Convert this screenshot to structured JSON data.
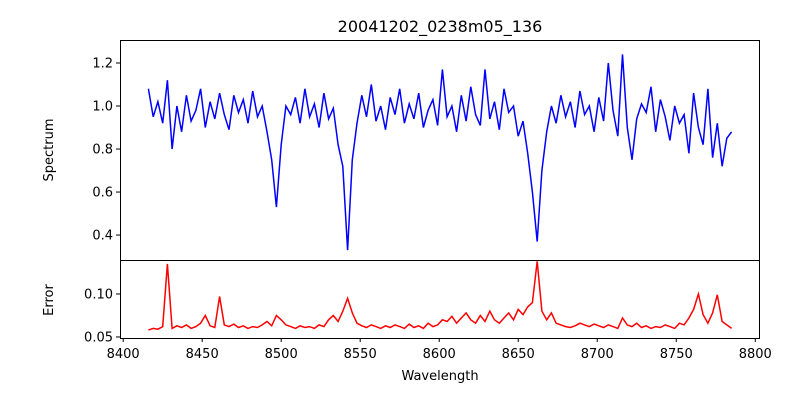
{
  "chart_data": [
    {
      "type": "line",
      "title": "20041202_0238m05_136",
      "xlabel": "",
      "ylabel": "Spectrum",
      "xlim": [
        8398,
        8803
      ],
      "ylim": [
        0.284,
        1.307
      ],
      "yticks": [
        0.4,
        0.6,
        0.8,
        1.0,
        1.2
      ],
      "ytick_labels": [
        "0.4",
        "0.6",
        "0.8",
        "1.0",
        "1.2"
      ],
      "x_start": 8416,
      "x_step": 3,
      "color": "#0000ff",
      "values": [
        1.08,
        0.95,
        1.02,
        0.92,
        1.12,
        0.8,
        1.0,
        0.88,
        1.05,
        0.93,
        0.98,
        1.08,
        0.9,
        1.02,
        0.94,
        1.06,
        0.96,
        0.89,
        1.05,
        0.97,
        1.03,
        0.92,
        1.07,
        0.95,
        1.0,
        0.88,
        0.75,
        0.53,
        0.82,
        1.0,
        0.96,
        1.04,
        0.92,
        1.08,
        0.95,
        1.01,
        0.9,
        1.06,
        0.94,
        0.99,
        0.82,
        0.72,
        0.33,
        0.75,
        0.92,
        1.05,
        0.95,
        1.1,
        0.93,
        1.0,
        0.89,
        1.04,
        0.96,
        1.08,
        0.92,
        1.01,
        0.94,
        1.06,
        0.9,
        0.98,
        1.03,
        0.91,
        1.17,
        0.95,
        1.0,
        0.88,
        1.05,
        0.93,
        1.09,
        0.96,
        0.91,
        1.17,
        0.94,
        1.02,
        0.89,
        1.08,
        0.97,
        1.0,
        0.86,
        0.93,
        0.78,
        0.6,
        0.37,
        0.7,
        0.88,
        1.0,
        0.92,
        1.05,
        0.95,
        1.02,
        0.9,
        1.07,
        0.96,
        1.0,
        0.88,
        1.04,
        0.93,
        1.2,
        0.98,
        0.86,
        1.24,
        0.9,
        0.75,
        0.94,
        1.01,
        0.97,
        1.09,
        0.88,
        1.03,
        0.95,
        0.84,
        1.0,
        0.92,
        0.96,
        0.78,
        1.06,
        0.9,
        0.82,
        1.08,
        0.76,
        0.92,
        0.72,
        0.85,
        0.88
      ]
    },
    {
      "type": "line",
      "title": "",
      "xlabel": "Wavelength",
      "ylabel": "Error",
      "xlim": [
        8398,
        8803
      ],
      "ylim": [
        0.0488,
        0.1395
      ],
      "yticks": [
        0.05,
        0.1
      ],
      "ytick_labels": [
        "0.05",
        "0.10"
      ],
      "xticks": [
        8400,
        8450,
        8500,
        8550,
        8600,
        8650,
        8700,
        8750,
        8800
      ],
      "xtick_labels": [
        "8400",
        "8450",
        "8500",
        "8550",
        "8600",
        "8650",
        "8700",
        "8750",
        "8800"
      ],
      "x_start": 8416,
      "x_step": 3,
      "color": "#ff0000",
      "values": [
        0.058,
        0.06,
        0.059,
        0.062,
        0.135,
        0.06,
        0.063,
        0.061,
        0.064,
        0.06,
        0.062,
        0.066,
        0.075,
        0.063,
        0.061,
        0.097,
        0.064,
        0.062,
        0.065,
        0.061,
        0.063,
        0.06,
        0.062,
        0.061,
        0.064,
        0.068,
        0.063,
        0.075,
        0.07,
        0.064,
        0.062,
        0.06,
        0.063,
        0.061,
        0.062,
        0.06,
        0.064,
        0.062,
        0.07,
        0.075,
        0.068,
        0.08,
        0.095,
        0.078,
        0.066,
        0.063,
        0.061,
        0.064,
        0.062,
        0.06,
        0.063,
        0.061,
        0.064,
        0.062,
        0.06,
        0.065,
        0.061,
        0.063,
        0.06,
        0.066,
        0.062,
        0.064,
        0.07,
        0.068,
        0.074,
        0.066,
        0.072,
        0.078,
        0.07,
        0.066,
        0.075,
        0.068,
        0.08,
        0.07,
        0.066,
        0.072,
        0.078,
        0.07,
        0.082,
        0.076,
        0.085,
        0.09,
        0.138,
        0.08,
        0.07,
        0.078,
        0.066,
        0.064,
        0.062,
        0.061,
        0.063,
        0.066,
        0.064,
        0.062,
        0.065,
        0.063,
        0.061,
        0.064,
        0.062,
        0.06,
        0.072,
        0.064,
        0.062,
        0.066,
        0.061,
        0.063,
        0.06,
        0.062,
        0.061,
        0.064,
        0.062,
        0.06,
        0.066,
        0.064,
        0.072,
        0.082,
        0.1,
        0.076,
        0.066,
        0.078,
        0.099,
        0.068,
        0.064,
        0.06
      ]
    }
  ]
}
